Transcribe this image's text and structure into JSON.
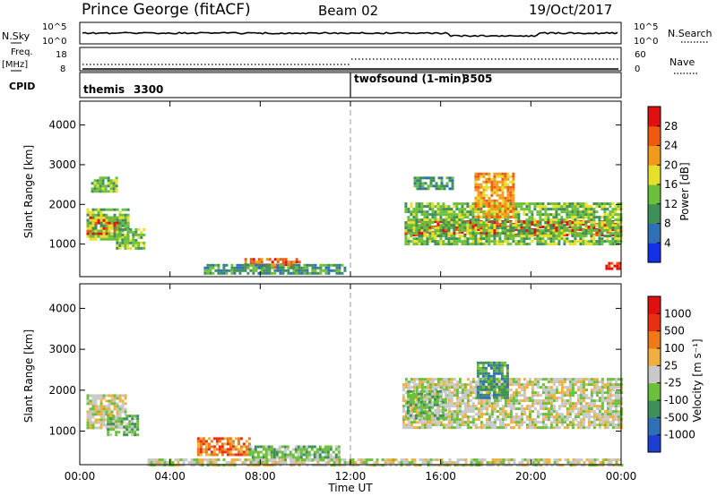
{
  "header": {
    "station": "Prince George (fitACF)",
    "beam": "Beam 02",
    "date": "19/Oct/2017"
  },
  "params": {
    "nsky_label": "N.Sky",
    "nsearch_label": "N.Search",
    "freq_label": "Freq.",
    "freq_unit": "[MHz]",
    "nave_label": "Nave",
    "cpid_label": "CPID",
    "left_axis_top": "10^5",
    "left_axis_bottom": "10^0",
    "right_axis_top": "10^5",
    "right_axis_bottom": "10^0",
    "freq_ticks": [
      "18",
      "8"
    ],
    "nave_ticks": [
      "60",
      "0"
    ]
  },
  "cpid": {
    "modes": [
      {
        "name": "themis",
        "id": "3300",
        "start_hour": 0
      },
      {
        "name": "twofsound (1-min)",
        "id": "3505",
        "start_hour": 12
      }
    ]
  },
  "chart_data": [
    {
      "type": "heatmap",
      "parameter": "power",
      "ylabel": "Slant Range [km]",
      "y_ticks": [
        "1000",
        "2000",
        "3000",
        "4000"
      ],
      "ylim": [
        180,
        4600
      ],
      "xlim": [
        0,
        24
      ],
      "colorbar": {
        "label": "Power [dB]",
        "ticks": [
          "4",
          "8",
          "12",
          "16",
          "20",
          "24",
          "28"
        ],
        "colors": [
          "#1330e8",
          "#2f6fb8",
          "#3e8f5a",
          "#6cbf3a",
          "#e6e02a",
          "#f39a1a",
          "#f05a10",
          "#e01010"
        ]
      },
      "regions": [
        {
          "x0": 0.3,
          "x1": 1.8,
          "y0": 1250,
          "y1": 1700,
          "level": 7
        },
        {
          "x0": 0.3,
          "x1": 2.1,
          "y0": 1100,
          "y1": 1900,
          "level": 3
        },
        {
          "x0": 0.5,
          "x1": 1.6,
          "y0": 2300,
          "y1": 2700,
          "level": 3
        },
        {
          "x0": 1.6,
          "x1": 2.8,
          "y0": 900,
          "y1": 1400,
          "level": 3
        },
        {
          "x0": 7.3,
          "x1": 9.8,
          "y0": 380,
          "y1": 650,
          "level": 6
        },
        {
          "x0": 5.5,
          "x1": 11.8,
          "y0": 250,
          "y1": 500,
          "level": 2
        },
        {
          "x0": 14.4,
          "x1": 24,
          "y0": 1200,
          "y1": 1600,
          "level": 7
        },
        {
          "x0": 14.4,
          "x1": 24,
          "y0": 1000,
          "y1": 2050,
          "level": 3
        },
        {
          "x0": 14.8,
          "x1": 16.5,
          "y0": 2400,
          "y1": 2700,
          "level": 2
        },
        {
          "x0": 17.5,
          "x1": 19.2,
          "y0": 1700,
          "y1": 2800,
          "level": 5
        },
        {
          "x0": 23.3,
          "x1": 24,
          "y0": 350,
          "y1": 550,
          "level": 7
        }
      ]
    },
    {
      "type": "heatmap",
      "parameter": "velocity",
      "ylabel": "Slant Range [km]",
      "xlabel": "Time UT",
      "x_ticks": [
        "00:00",
        "04:00",
        "08:00",
        "12:00",
        "16:00",
        "20:00",
        "00:00"
      ],
      "y_ticks": [
        "1000",
        "2000",
        "3000",
        "4000"
      ],
      "ylim": [
        180,
        4600
      ],
      "xlim": [
        0,
        24
      ],
      "colorbar": {
        "label": "Velocity [m s⁻¹]",
        "ticks": [
          "1000",
          "500",
          "100",
          "25",
          "-25",
          "-100",
          "-500",
          "-1000"
        ],
        "colors": [
          "#1b3fd0",
          "#2f6fb8",
          "#3e8f5a",
          "#6cbf3a",
          "#c8c8c8",
          "#f0b040",
          "#f07818",
          "#e83010",
          "#e01010"
        ]
      },
      "regions": [
        {
          "x0": 0.3,
          "x1": 2.0,
          "y0": 1100,
          "y1": 1900,
          "level": 4
        },
        {
          "x0": 1.2,
          "x1": 2.6,
          "y0": 900,
          "y1": 1400,
          "level": 3
        },
        {
          "x0": 5.2,
          "x1": 7.5,
          "y0": 450,
          "y1": 850,
          "level": 6
        },
        {
          "x0": 7.5,
          "x1": 11.5,
          "y0": 300,
          "y1": 650,
          "level": 3
        },
        {
          "x0": 3.0,
          "x1": 24,
          "y0": 190,
          "y1": 330,
          "level": 4
        },
        {
          "x0": 14.3,
          "x1": 24,
          "y0": 1100,
          "y1": 2300,
          "level": 4
        },
        {
          "x0": 14.5,
          "x1": 16.2,
          "y0": 1300,
          "y1": 2000,
          "level": 3
        },
        {
          "x0": 17.6,
          "x1": 19.0,
          "y0": 1800,
          "y1": 2700,
          "level": 2
        }
      ]
    }
  ]
}
